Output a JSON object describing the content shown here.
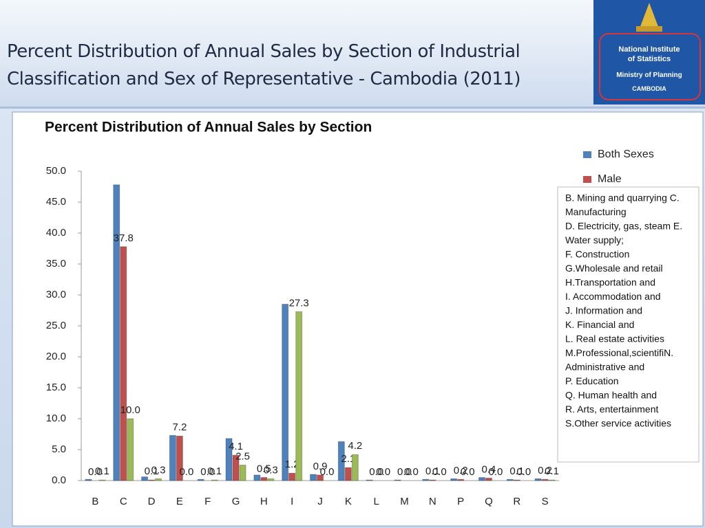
{
  "slide": {
    "title": "Percent Distribution of Annual Sales by Section of Industrial Classification and Sex of Representative - Cambodia (2011)",
    "logo": [
      "National Institute",
      "of Statistics",
      "Ministry of Planning",
      "CAMBODIA"
    ]
  },
  "chart_data": {
    "type": "bar",
    "title": "Percent Distribution of Annual Sales by Section",
    "categories": [
      "B",
      "C",
      "D",
      "E",
      "F",
      "G",
      "H",
      "I",
      "J",
      "K",
      "L",
      "M",
      "N",
      "P",
      "Q",
      "R",
      "S"
    ],
    "series": [
      {
        "name": "Both Sexes",
        "color": "#4f81bd",
        "values": [
          0.2,
          47.8,
          0.6,
          7.3,
          0.2,
          6.8,
          0.9,
          28.5,
          1.0,
          6.3,
          0.1,
          0.1,
          0.2,
          0.3,
          0.5,
          0.2,
          0.3
        ]
      },
      {
        "name": "Male",
        "color": "#c0504d",
        "values": [
          0.0,
          37.8,
          0.1,
          7.2,
          0.0,
          4.1,
          0.5,
          1.2,
          0.9,
          2.1,
          0.0,
          0.0,
          0.1,
          0.2,
          0.4,
          0.1,
          0.2
        ],
        "value_labels": [
          "0.0",
          "37.8",
          "0.1",
          "7.2",
          "0.0",
          "4.1",
          "0.5",
          "1.2",
          "0.9",
          "2.1",
          "0.0",
          "0.0",
          "0.1",
          "0.2",
          "0.4",
          "0.1",
          "0.2"
        ]
      },
      {
        "color": "#9bbb59",
        "values": [
          0.1,
          10.0,
          0.3,
          0.0,
          0.1,
          2.5,
          0.3,
          27.3,
          0.0,
          4.2,
          0.0,
          0.0,
          0.0,
          0.0,
          0.0,
          0.0,
          0.1
        ],
        "value_labels": [
          "0.1",
          "10.0",
          "0.3",
          "0.0",
          "0.1",
          "2.5",
          "0.3",
          "27.3",
          "0.0",
          "4.2",
          "0.0",
          "0.0",
          "0.0",
          "0.0",
          "0.0",
          "0.0",
          "0.1"
        ]
      }
    ],
    "ylim": [
      0,
      50
    ],
    "yticks": [
      {
        "value": 0,
        "label": "0.0"
      },
      {
        "value": 5,
        "label": "5.0"
      },
      {
        "value": 10,
        "label": "10.0"
      },
      {
        "value": 15,
        "label": "15.0"
      },
      {
        "value": 20,
        "label": "20.0"
      },
      {
        "value": 25,
        "label": "25.0"
      },
      {
        "value": 30,
        "label": "30.0"
      },
      {
        "value": 35,
        "label": "35.0"
      },
      {
        "value": 40,
        "label": "40.0"
      },
      {
        "value": 45,
        "label": "45.0"
      },
      {
        "value": 50,
        "label": "50.0"
      }
    ],
    "grid": false,
    "legend_loc": "right",
    "note": [
      "B. Mining and quarrying C.",
      "Manufacturing",
      "D. Electricity, gas, steam E.",
      "Water supply;",
      "F. Construction",
      "G.Wholesale and retail",
      "H.Transportation and",
      "I. Accommodation and",
      "J. Information and",
      "K. Financial and",
      "L. Real estate activities",
      "M.Professional,scientifiN.",
      "Administrative and",
      "P. Education",
      "Q. Human health and",
      "R. Arts, entertainment",
      "S.Other service activities"
    ]
  }
}
